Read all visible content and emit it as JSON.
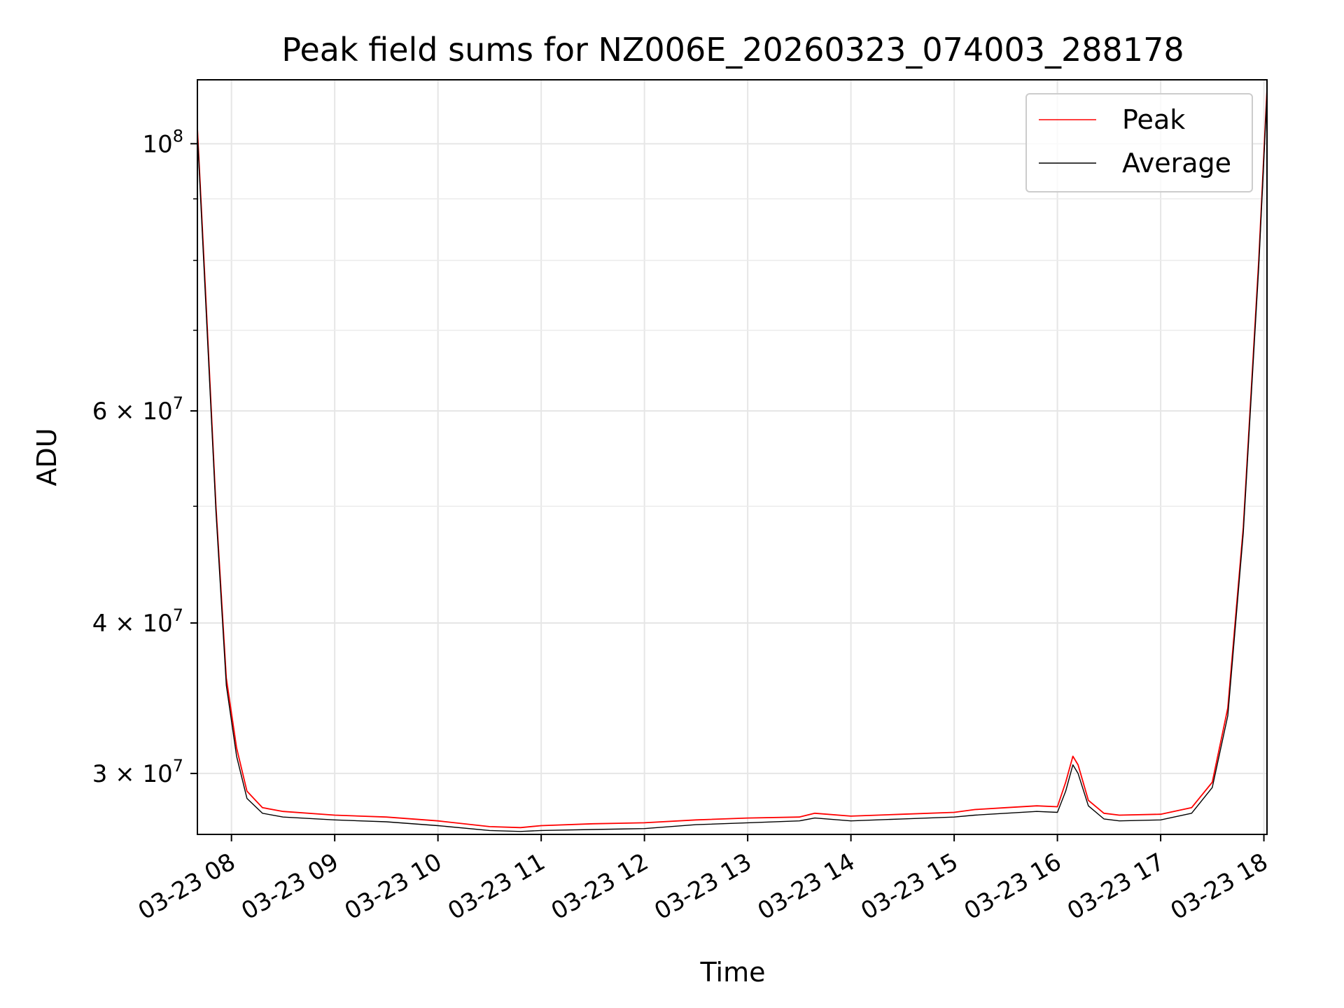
{
  "chart_data": {
    "type": "line",
    "title": "Peak field sums for NZ006E_20260323_074003_288178",
    "xlabel": "Time",
    "ylabel": "ADU",
    "yscale": "log",
    "grid": true,
    "legend_position": "top-right",
    "x_range_hours": [
      7.67,
      18.03
    ],
    "ylim": [
      26700000,
      113000000
    ],
    "x_ticks": [
      {
        "hour": 8,
        "label": "03-23 08"
      },
      {
        "hour": 9,
        "label": "03-23 09"
      },
      {
        "hour": 10,
        "label": "03-23 10"
      },
      {
        "hour": 11,
        "label": "03-23 11"
      },
      {
        "hour": 12,
        "label": "03-23 12"
      },
      {
        "hour": 13,
        "label": "03-23 13"
      },
      {
        "hour": 14,
        "label": "03-23 14"
      },
      {
        "hour": 15,
        "label": "03-23 15"
      },
      {
        "hour": 16,
        "label": "03-23 16"
      },
      {
        "hour": 17,
        "label": "03-23 17"
      },
      {
        "hour": 18,
        "label": "03-23 18"
      }
    ],
    "y_ticks": [
      {
        "value": 100000000,
        "mantissa": "",
        "base": "10",
        "exp": "8"
      },
      {
        "value": 60000000,
        "mantissa": "6 × ",
        "base": "10",
        "exp": "7"
      },
      {
        "value": 40000000,
        "mantissa": "4 × ",
        "base": "10",
        "exp": "7"
      },
      {
        "value": 30000000,
        "mantissa": "3 × ",
        "base": "10",
        "exp": "7"
      }
    ],
    "y_minor_ticks": [
      90000000,
      80000000,
      70000000,
      50000000
    ],
    "series": [
      {
        "name": "Peak",
        "color": "#ff0000",
        "points": [
          [
            7.67,
            103000000
          ],
          [
            7.75,
            75000000
          ],
          [
            7.85,
            50000000
          ],
          [
            7.95,
            36000000
          ],
          [
            8.05,
            31500000
          ],
          [
            8.15,
            29000000
          ],
          [
            8.3,
            28100000
          ],
          [
            8.5,
            27900000
          ],
          [
            9.0,
            27700000
          ],
          [
            9.5,
            27600000
          ],
          [
            10.0,
            27400000
          ],
          [
            10.5,
            27100000
          ],
          [
            10.8,
            27050000
          ],
          [
            11.0,
            27150000
          ],
          [
            11.5,
            27250000
          ],
          [
            12.0,
            27300000
          ],
          [
            12.5,
            27450000
          ],
          [
            13.0,
            27550000
          ],
          [
            13.5,
            27600000
          ],
          [
            13.65,
            27800000
          ],
          [
            14.0,
            27650000
          ],
          [
            14.5,
            27750000
          ],
          [
            15.0,
            27850000
          ],
          [
            15.2,
            28000000
          ],
          [
            15.5,
            28100000
          ],
          [
            15.8,
            28200000
          ],
          [
            16.0,
            28150000
          ],
          [
            16.08,
            29500000
          ],
          [
            16.15,
            31000000
          ],
          [
            16.2,
            30500000
          ],
          [
            16.3,
            28500000
          ],
          [
            16.45,
            27800000
          ],
          [
            16.6,
            27700000
          ],
          [
            17.0,
            27750000
          ],
          [
            17.3,
            28100000
          ],
          [
            17.5,
            29500000
          ],
          [
            17.65,
            34000000
          ],
          [
            17.8,
            48000000
          ],
          [
            17.95,
            80000000
          ],
          [
            18.03,
            111000000
          ]
        ]
      },
      {
        "name": "Average",
        "color": "#000000",
        "points": [
          [
            7.67,
            102000000
          ],
          [
            7.75,
            74000000
          ],
          [
            7.85,
            49500000
          ],
          [
            7.95,
            35500000
          ],
          [
            8.05,
            31000000
          ],
          [
            8.15,
            28600000
          ],
          [
            8.3,
            27800000
          ],
          [
            8.5,
            27600000
          ],
          [
            9.0,
            27450000
          ],
          [
            9.5,
            27350000
          ],
          [
            10.0,
            27150000
          ],
          [
            10.5,
            26900000
          ],
          [
            10.8,
            26850000
          ],
          [
            11.0,
            26900000
          ],
          [
            11.5,
            26950000
          ],
          [
            12.0,
            27000000
          ],
          [
            12.5,
            27200000
          ],
          [
            13.0,
            27300000
          ],
          [
            13.5,
            27400000
          ],
          [
            13.65,
            27550000
          ],
          [
            14.0,
            27400000
          ],
          [
            14.5,
            27500000
          ],
          [
            15.0,
            27600000
          ],
          [
            15.2,
            27700000
          ],
          [
            15.5,
            27800000
          ],
          [
            15.8,
            27900000
          ],
          [
            16.0,
            27850000
          ],
          [
            16.08,
            29000000
          ],
          [
            16.15,
            30500000
          ],
          [
            16.2,
            30000000
          ],
          [
            16.3,
            28200000
          ],
          [
            16.45,
            27500000
          ],
          [
            16.6,
            27400000
          ],
          [
            17.0,
            27450000
          ],
          [
            17.3,
            27800000
          ],
          [
            17.5,
            29200000
          ],
          [
            17.65,
            33500000
          ],
          [
            17.8,
            47500000
          ],
          [
            17.95,
            79000000
          ],
          [
            18.03,
            110000000
          ]
        ]
      }
    ]
  }
}
